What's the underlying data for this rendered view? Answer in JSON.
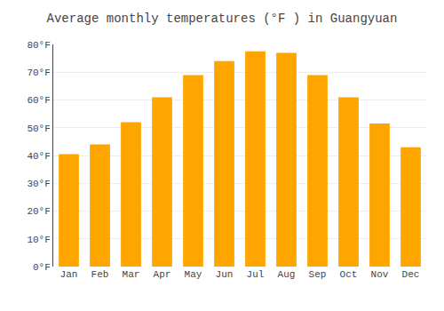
{
  "chart_data": {
    "type": "bar",
    "title": "Average monthly temperatures (°F ) in Guangyuan",
    "categories": [
      "Jan",
      "Feb",
      "Mar",
      "Apr",
      "May",
      "Jun",
      "Jul",
      "Aug",
      "Sep",
      "Oct",
      "Nov",
      "Dec"
    ],
    "values": [
      40.5,
      44,
      52,
      61,
      69,
      74,
      77.5,
      77,
      69,
      61,
      51.5,
      43
    ],
    "color": "#FFA500",
    "ylim": [
      0,
      80
    ],
    "yticks": [
      {
        "value": 0,
        "label": "0°F"
      },
      {
        "value": 10,
        "label": "10°F"
      },
      {
        "value": 20,
        "label": "20°F"
      },
      {
        "value": 30,
        "label": "30°F"
      },
      {
        "value": 40,
        "label": "40°F"
      },
      {
        "value": 50,
        "label": "50°F"
      },
      {
        "value": 60,
        "label": "60°F"
      },
      {
        "value": 70,
        "label": "70°F"
      },
      {
        "value": 80,
        "label": "80°F"
      }
    ],
    "grid": true
  }
}
